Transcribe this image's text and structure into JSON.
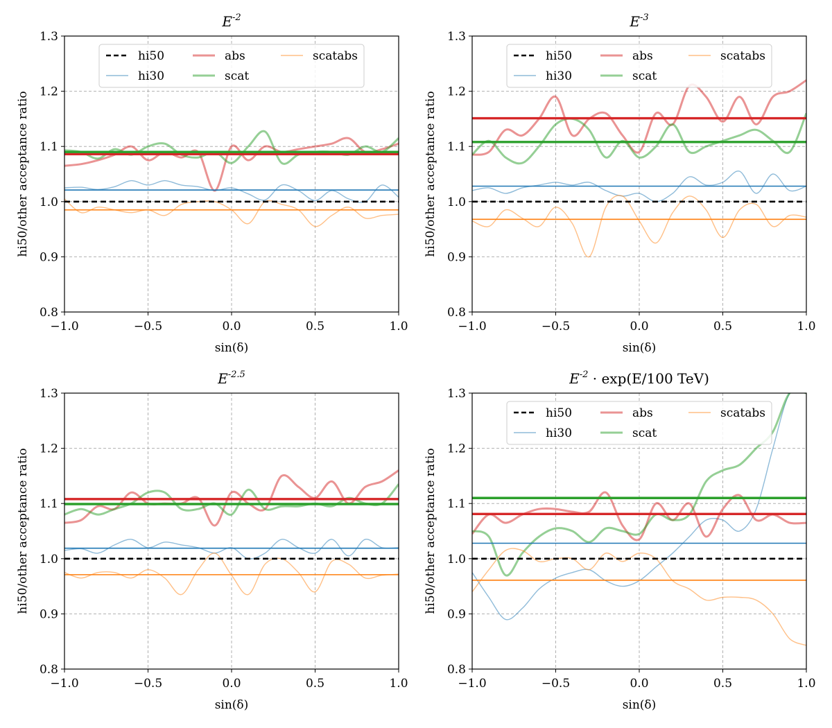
{
  "colors": {
    "hi50": "#000000",
    "hi30": "#1f77b4",
    "abs": "#d62728",
    "scat": "#2ca02c",
    "scatabs": "#ff7f0e",
    "grid": "#b0b0b0"
  },
  "chart_data": [
    {
      "type": "line",
      "title": "E^{-2}",
      "xlabel": "sin(δ)",
      "ylabel": "hi50/other acceptance ratio",
      "xlim": [
        -1.0,
        1.0
      ],
      "ylim": [
        0.8,
        1.3
      ],
      "xticks": [
        "−1.0",
        "−0.5",
        "0.0",
        "0.5",
        "1.0"
      ],
      "yticks": [
        "0.8",
        "0.9",
        "1.0",
        "1.1",
        "1.2",
        "1.3"
      ],
      "grid": true,
      "legend": {
        "placement": "top",
        "entries": [
          "hi50",
          "hi30",
          "abs",
          "scat",
          "scatabs"
        ]
      },
      "x": [
        -1.0,
        -0.9,
        -0.8,
        -0.7,
        -0.6,
        -0.5,
        -0.4,
        -0.3,
        -0.2,
        -0.1,
        0.0,
        0.1,
        0.2,
        0.3,
        0.4,
        0.5,
        0.6,
        0.7,
        0.8,
        0.9,
        1.0
      ],
      "series": [
        {
          "name": "hi50",
          "values": [
            1.0,
            1.0,
            1.0,
            1.0,
            1.0,
            1.0,
            1.0,
            1.0,
            1.0,
            1.0,
            1.0,
            1.0,
            1.0,
            1.0,
            1.0,
            1.0,
            1.0,
            1.0,
            1.0,
            1.0,
            1.0
          ],
          "mean": 1.0
        },
        {
          "name": "hi30",
          "values": [
            1.025,
            1.026,
            1.022,
            1.027,
            1.038,
            1.03,
            1.038,
            1.03,
            1.027,
            1.02,
            1.025,
            1.014,
            1.003,
            1.03,
            1.02,
            1.002,
            1.02,
            1.005,
            1.0,
            1.03,
            1.008
          ],
          "mean": 1.021
        },
        {
          "name": "abs",
          "values": [
            1.065,
            1.068,
            1.075,
            1.085,
            1.1,
            1.075,
            1.09,
            1.08,
            1.09,
            1.02,
            1.1,
            1.075,
            1.1,
            1.09,
            1.095,
            1.1,
            1.105,
            1.115,
            1.09,
            1.095,
            1.105
          ],
          "mean": 1.086
        },
        {
          "name": "scat",
          "values": [
            1.093,
            1.09,
            1.078,
            1.095,
            1.085,
            1.1,
            1.105,
            1.085,
            1.08,
            1.09,
            1.07,
            1.1,
            1.127,
            1.07,
            1.085,
            1.09,
            1.09,
            1.085,
            1.1,
            1.09,
            1.115
          ],
          "mean": 1.09
        },
        {
          "name": "scatabs",
          "values": [
            1.005,
            0.98,
            0.99,
            0.985,
            0.98,
            0.985,
            0.975,
            0.995,
            1.0,
            1.0,
            0.985,
            0.96,
            1.0,
            0.995,
            0.985,
            0.955,
            0.975,
            0.99,
            0.97,
            0.975,
            0.977
          ],
          "mean": 0.985
        }
      ]
    },
    {
      "type": "line",
      "title": "E^{-3}",
      "xlabel": "sin(δ)",
      "ylabel": "hi50/other acceptance ratio",
      "xlim": [
        -1.0,
        1.0
      ],
      "ylim": [
        0.8,
        1.3
      ],
      "xticks": [
        "−1.0",
        "−0.5",
        "0.0",
        "0.5",
        "1.0"
      ],
      "yticks": [
        "0.8",
        "0.9",
        "1.0",
        "1.1",
        "1.2",
        "1.3"
      ],
      "grid": true,
      "legend": {
        "placement": "top",
        "entries": [
          "hi50",
          "hi30",
          "abs",
          "scat",
          "scatabs"
        ]
      },
      "x": [
        -1.0,
        -0.9,
        -0.8,
        -0.7,
        -0.6,
        -0.5,
        -0.4,
        -0.3,
        -0.2,
        -0.1,
        0.0,
        0.1,
        0.2,
        0.3,
        0.4,
        0.5,
        0.6,
        0.7,
        0.8,
        0.9,
        1.0
      ],
      "series": [
        {
          "name": "hi50",
          "values": [
            1.0,
            1.0,
            1.0,
            1.0,
            1.0,
            1.0,
            1.0,
            1.0,
            1.0,
            1.0,
            1.0,
            1.0,
            1.0,
            1.0,
            1.0,
            1.0,
            1.0,
            1.0,
            1.0,
            1.0,
            1.0
          ],
          "mean": 1.0
        },
        {
          "name": "hi30",
          "values": [
            1.02,
            1.025,
            1.015,
            1.025,
            1.03,
            1.035,
            1.03,
            1.035,
            1.02,
            1.01,
            1.015,
            1.0,
            1.015,
            1.045,
            1.03,
            1.035,
            1.055,
            1.015,
            1.05,
            1.02,
            1.028
          ],
          "mean": 1.028
        },
        {
          "name": "abs",
          "values": [
            1.085,
            1.09,
            1.13,
            1.12,
            1.15,
            1.19,
            1.12,
            1.15,
            1.16,
            1.12,
            1.09,
            1.16,
            1.14,
            1.21,
            1.19,
            1.145,
            1.19,
            1.14,
            1.19,
            1.2,
            1.22
          ],
          "mean": 1.151
        },
        {
          "name": "scat",
          "values": [
            1.085,
            1.11,
            1.08,
            1.07,
            1.1,
            1.14,
            1.15,
            1.13,
            1.08,
            1.11,
            1.08,
            1.1,
            1.14,
            1.09,
            1.1,
            1.11,
            1.12,
            1.13,
            1.11,
            1.09,
            1.16
          ],
          "mean": 1.108
        },
        {
          "name": "scatabs",
          "values": [
            0.965,
            0.955,
            0.985,
            0.97,
            0.955,
            0.99,
            0.96,
            0.9,
            0.99,
            1.01,
            0.965,
            0.925,
            0.98,
            1.01,
            0.985,
            0.935,
            0.985,
            0.995,
            0.955,
            0.975,
            0.972
          ],
          "mean": 0.968
        }
      ]
    },
    {
      "type": "line",
      "title": "E^{-2.5}",
      "xlabel": "sin(δ)",
      "ylabel": "hi50/other acceptance ratio",
      "xlim": [
        -1.0,
        1.0
      ],
      "ylim": [
        0.8,
        1.3
      ],
      "xticks": [
        "−1.0",
        "−0.5",
        "0.0",
        "0.5",
        "1.0"
      ],
      "yticks": [
        "0.8",
        "0.9",
        "1.0",
        "1.1",
        "1.2",
        "1.3"
      ],
      "grid": true,
      "legend": null,
      "x": [
        -1.0,
        -0.9,
        -0.8,
        -0.7,
        -0.6,
        -0.5,
        -0.4,
        -0.3,
        -0.2,
        -0.1,
        0.0,
        0.1,
        0.2,
        0.3,
        0.4,
        0.5,
        0.6,
        0.7,
        0.8,
        0.9,
        1.0
      ],
      "series": [
        {
          "name": "hi50",
          "values": [
            1.0,
            1.0,
            1.0,
            1.0,
            1.0,
            1.0,
            1.0,
            1.0,
            1.0,
            1.0,
            1.0,
            1.0,
            1.0,
            1.0,
            1.0,
            1.0,
            1.0,
            1.0,
            1.0,
            1.0,
            1.0
          ],
          "mean": 1.0
        },
        {
          "name": "hi30",
          "values": [
            1.015,
            1.018,
            1.01,
            1.025,
            1.035,
            1.02,
            1.03,
            1.025,
            1.02,
            1.01,
            1.02,
            1.0,
            1.01,
            1.035,
            1.02,
            1.01,
            1.035,
            1.005,
            1.035,
            1.02,
            1.02
          ],
          "mean": 1.019
        },
        {
          "name": "abs",
          "values": [
            1.065,
            1.07,
            1.095,
            1.09,
            1.12,
            1.1,
            1.1,
            1.1,
            1.11,
            1.06,
            1.12,
            1.1,
            1.09,
            1.15,
            1.13,
            1.11,
            1.14,
            1.1,
            1.13,
            1.14,
            1.16
          ],
          "mean": 1.108
        },
        {
          "name": "scat",
          "values": [
            1.08,
            1.09,
            1.08,
            1.09,
            1.1,
            1.12,
            1.12,
            1.09,
            1.09,
            1.1,
            1.08,
            1.125,
            1.09,
            1.095,
            1.095,
            1.1,
            1.095,
            1.11,
            1.1,
            1.1,
            1.135
          ],
          "mean": 1.099
        },
        {
          "name": "scatabs",
          "values": [
            0.975,
            0.965,
            0.975,
            0.975,
            0.965,
            0.98,
            0.965,
            0.935,
            0.98,
            1.01,
            0.97,
            0.935,
            0.99,
            1.0,
            0.975,
            0.94,
            0.995,
            0.99,
            0.965,
            0.97,
            0.972
          ],
          "mean": 0.971
        }
      ]
    },
    {
      "type": "line",
      "title": "E^{-2} · exp(E/100 TeV)",
      "xlabel": "sin(δ)",
      "ylabel": "hi50/other acceptance ratio",
      "xlim": [
        -1.0,
        1.0
      ],
      "ylim": [
        0.8,
        1.3
      ],
      "xticks": [
        "−1.0",
        "−0.5",
        "0.0",
        "0.5",
        "1.0"
      ],
      "yticks": [
        "0.8",
        "0.9",
        "1.0",
        "1.1",
        "1.2",
        "1.3"
      ],
      "grid": true,
      "legend": {
        "placement": "top",
        "entries": [
          "hi50",
          "hi30",
          "abs",
          "scat",
          "scatabs"
        ]
      },
      "x": [
        -1.0,
        -0.9,
        -0.8,
        -0.7,
        -0.6,
        -0.5,
        -0.4,
        -0.3,
        -0.2,
        -0.1,
        0.0,
        0.1,
        0.2,
        0.3,
        0.4,
        0.5,
        0.6,
        0.7,
        0.8,
        0.9,
        1.0
      ],
      "series": [
        {
          "name": "hi50",
          "values": [
            1.0,
            1.0,
            1.0,
            1.0,
            1.0,
            1.0,
            1.0,
            1.0,
            1.0,
            1.0,
            1.0,
            1.0,
            1.0,
            1.0,
            1.0,
            1.0,
            1.0,
            1.0,
            1.0,
            1.0,
            1.0
          ],
          "mean": 1.0
        },
        {
          "name": "hi30",
          "values": [
            0.975,
            0.93,
            0.89,
            0.91,
            0.945,
            0.965,
            0.975,
            0.98,
            0.96,
            0.95,
            0.96,
            0.985,
            1.01,
            1.04,
            1.07,
            1.07,
            1.05,
            1.09,
            1.2,
            1.3,
            1.3
          ],
          "mean": 1.028
        },
        {
          "name": "abs",
          "values": [
            1.045,
            1.08,
            1.065,
            1.08,
            1.09,
            1.09,
            1.085,
            1.085,
            1.12,
            1.06,
            1.035,
            1.1,
            1.07,
            1.1,
            1.04,
            1.09,
            1.115,
            1.07,
            1.08,
            1.065,
            1.065
          ],
          "mean": 1.081
        },
        {
          "name": "scat",
          "values": [
            1.05,
            1.04,
            0.97,
            1.01,
            1.04,
            1.055,
            1.05,
            1.03,
            1.055,
            1.05,
            1.045,
            1.08,
            1.07,
            1.08,
            1.14,
            1.16,
            1.17,
            1.2,
            1.23,
            1.3,
            1.3
          ],
          "mean": 1.11
        },
        {
          "name": "scatabs",
          "values": [
            0.94,
            0.98,
            1.015,
            1.015,
            0.995,
            1.0,
            1.0,
            0.98,
            1.01,
            0.995,
            1.01,
            1.0,
            0.96,
            0.945,
            0.925,
            0.93,
            0.93,
            0.925,
            0.9,
            0.855,
            0.843
          ],
          "mean": 0.961
        }
      ]
    }
  ]
}
